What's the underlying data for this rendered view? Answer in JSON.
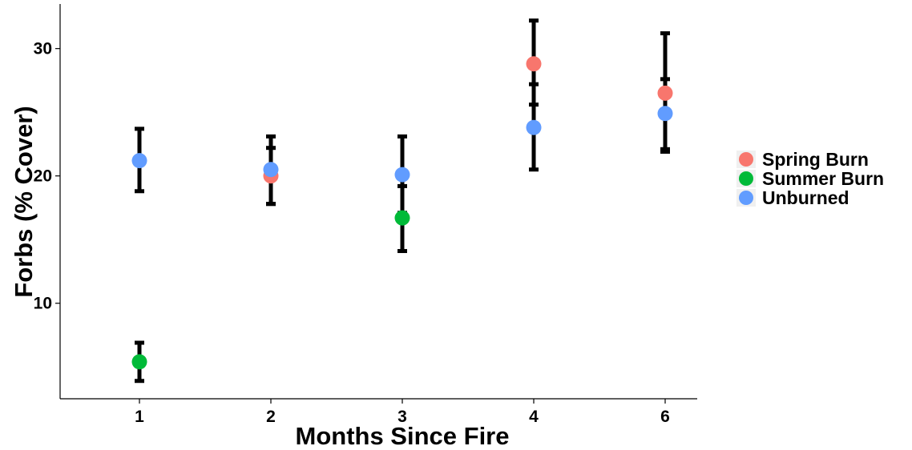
{
  "chart_data": {
    "type": "scatter",
    "title": "",
    "xlabel": "Months Since Fire",
    "ylabel": "Forbs (% Cover)",
    "categories": [
      "1",
      "2",
      "3",
      "4",
      "6"
    ],
    "y_ticks": [
      10,
      20,
      30
    ],
    "ylim": [
      2.5,
      33.5
    ],
    "grid": false,
    "legend_position": "right",
    "series": [
      {
        "name": "Spring Burn",
        "color": "#F8766D",
        "points": [
          {
            "x": "2",
            "y": 20.0,
            "lo": 17.8,
            "hi": 22.2
          },
          {
            "x": "4",
            "y": 28.8,
            "lo": 25.6,
            "hi": 32.2
          },
          {
            "x": "6",
            "y": 26.5,
            "lo": 22.1,
            "hi": 31.2
          }
        ]
      },
      {
        "name": "Summer Burn",
        "color": "#00BA38",
        "points": [
          {
            "x": "1",
            "y": 5.4,
            "lo": 3.9,
            "hi": 6.9
          },
          {
            "x": "3",
            "y": 16.7,
            "lo": 14.1,
            "hi": 19.2
          }
        ]
      },
      {
        "name": "Unburned",
        "color": "#619CFF",
        "points": [
          {
            "x": "1",
            "y": 21.2,
            "lo": 18.8,
            "hi": 23.7
          },
          {
            "x": "2",
            "y": 20.5,
            "lo": 17.8,
            "hi": 23.1
          },
          {
            "x": "3",
            "y": 20.1,
            "lo": 17.1,
            "hi": 23.1
          },
          {
            "x": "4",
            "y": 23.8,
            "lo": 20.5,
            "hi": 27.2
          },
          {
            "x": "6",
            "y": 24.9,
            "lo": 21.9,
            "hi": 27.6
          }
        ]
      }
    ]
  }
}
